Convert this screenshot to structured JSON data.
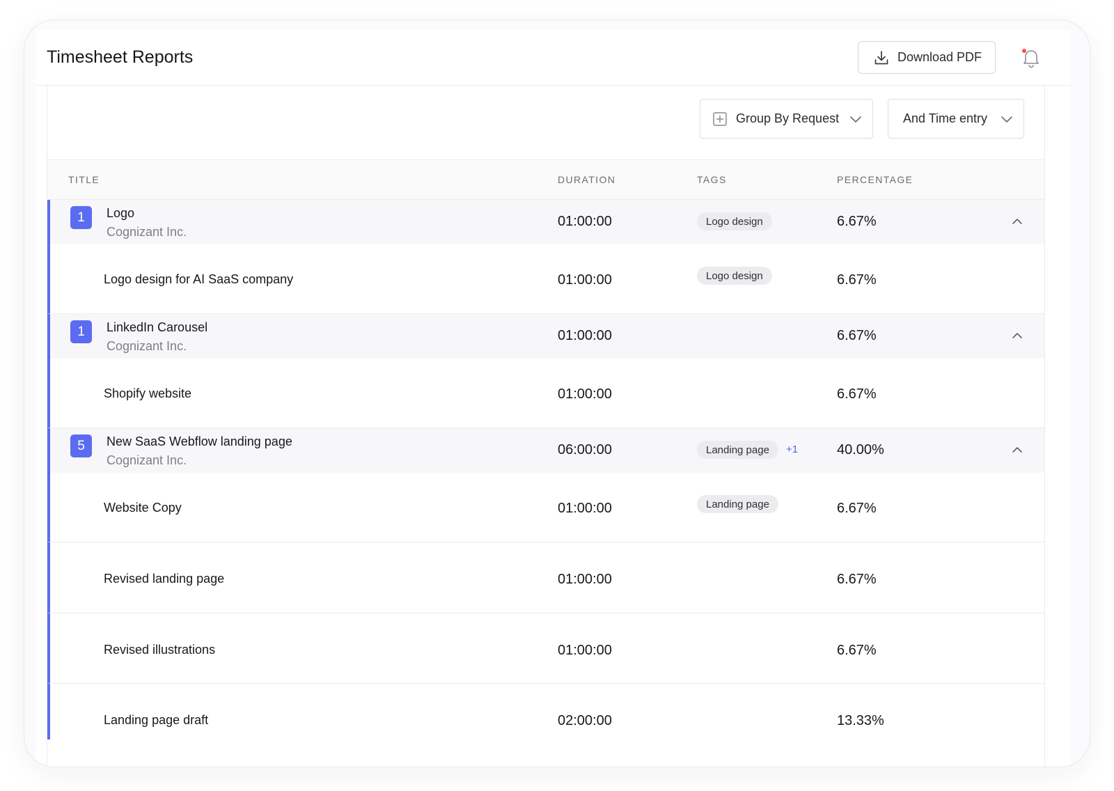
{
  "header": {
    "title": "Timesheet Reports",
    "download_label": "Download PDF"
  },
  "toolbar": {
    "group_by": "Group By Request",
    "time_filter": "And Time entry"
  },
  "columns": {
    "title": "TITLE",
    "duration": "DURATION",
    "tags": "TAGS",
    "percentage": "PERCENTAGE"
  },
  "groups": [
    {
      "count": "1",
      "title": "Logo",
      "client": "Cognizant Inc.",
      "duration": "01:00:00",
      "tag": "Logo design",
      "extra": "",
      "percentage": "6.67%",
      "entries": [
        {
          "title": "Logo design for AI SaaS company",
          "duration": "01:00:00",
          "tag": "Logo design",
          "percentage": "6.67%"
        }
      ]
    },
    {
      "count": "1",
      "title": "LinkedIn Carousel",
      "client": "Cognizant Inc.",
      "duration": "01:00:00",
      "tag": "",
      "extra": "",
      "percentage": "6.67%",
      "entries": [
        {
          "title": "Shopify website",
          "duration": "01:00:00",
          "tag": "",
          "percentage": "6.67%"
        }
      ]
    },
    {
      "count": "5",
      "title": "New SaaS Webflow landing page",
      "client": "Cognizant Inc.",
      "duration": "06:00:00",
      "tag": "Landing page",
      "extra": "+1",
      "percentage": "40.00%",
      "entries": [
        {
          "title": "Website Copy",
          "duration": "01:00:00",
          "tag": "Landing page",
          "percentage": "6.67%"
        },
        {
          "title": "Revised landing page",
          "duration": "01:00:00",
          "tag": "",
          "percentage": "6.67%"
        },
        {
          "title": "Revised illustrations",
          "duration": "01:00:00",
          "tag": "",
          "percentage": "6.67%"
        },
        {
          "title": "Landing page draft",
          "duration": "02:00:00",
          "tag": "",
          "percentage": "13.33%"
        }
      ]
    }
  ],
  "colors": {
    "accent": "#5b6cf0",
    "tag_bg": "#ececef",
    "notification_dot": "#ff4d4d",
    "plus_link": "#4b63ea"
  },
  "icons": {
    "download": "download-icon",
    "bell": "bell-icon",
    "group": "plus-square-icon",
    "dropdown": "chevron-down-icon",
    "collapse": "chevron-up-icon"
  }
}
